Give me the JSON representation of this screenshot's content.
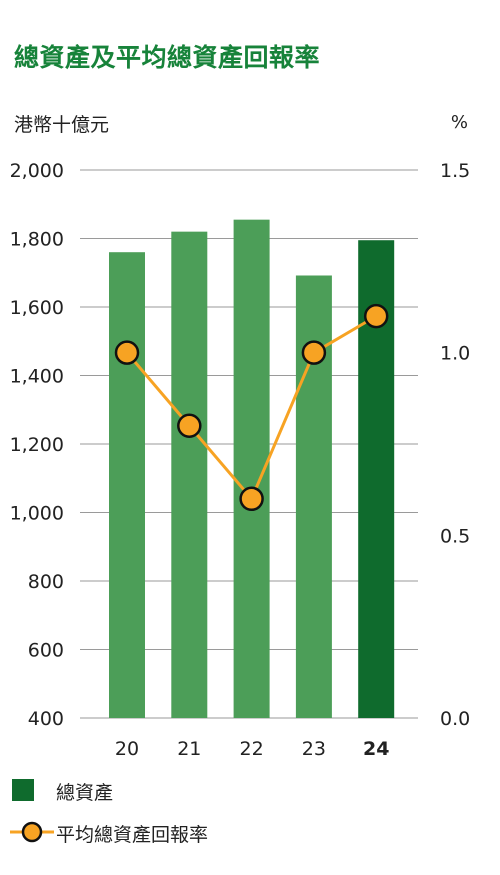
{
  "colors": {
    "title": "#17833a",
    "bar": "#4c9e58",
    "bar_highlight": "#0f6b2d",
    "line": "#f7a323",
    "marker_stroke": "#111111",
    "grid": "#9a9a9a",
    "text": "#222222"
  },
  "chart_data": {
    "type": "bar",
    "title": "總資產及平均總資產回報率",
    "categories": [
      "20",
      "21",
      "22",
      "23",
      "24"
    ],
    "highlight_category": "24",
    "y_left": {
      "label": "港幣十億元",
      "range": [
        400,
        2000
      ],
      "ticks": [
        "2,000",
        "1,800",
        "1,600",
        "1,400",
        "1,200",
        "1,000",
        "800",
        "600",
        "400"
      ]
    },
    "y_right": {
      "label": "%",
      "range": [
        0.0,
        1.5
      ],
      "ticks": [
        "1.5",
        "1.0",
        "0.5",
        "0.0"
      ]
    },
    "series": [
      {
        "name": "總資產",
        "type": "bar",
        "axis": "left",
        "values": [
          1760,
          1820,
          1855,
          1692,
          1795
        ]
      },
      {
        "name": "平均總資產回報率",
        "type": "line",
        "axis": "right",
        "values": [
          1.0,
          0.8,
          0.6,
          1.0,
          1.1
        ]
      }
    ],
    "grid": true,
    "legend": "bottom-left"
  }
}
